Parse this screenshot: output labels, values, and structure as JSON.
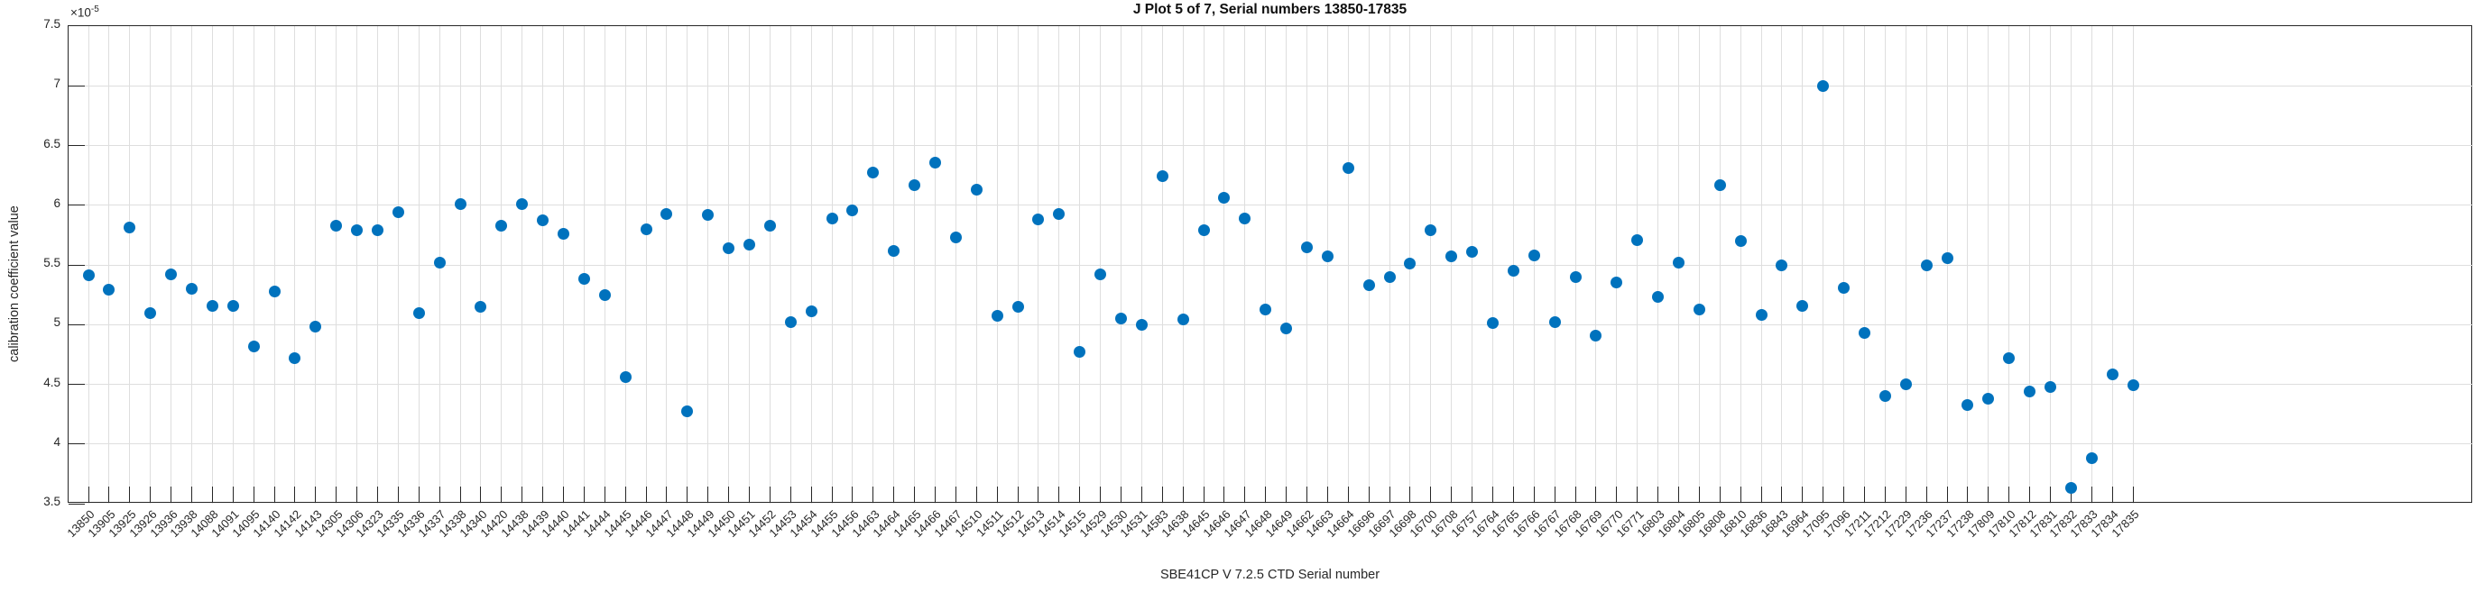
{
  "window": {
    "background": "#ffffff"
  },
  "chart_data": {
    "type": "scatter",
    "title": "J Plot 5 of 7, Serial numbers 13850-17835",
    "xlabel": "SBE41CP V 7.2.5 CTD Serial number",
    "ylabel": "calibration coefficient value",
    "y_offset_base": "×10",
    "y_offset_exponent": "-5",
    "ylim": [
      3.5,
      7.5
    ],
    "ytick_values": [
      3.5,
      4,
      4.5,
      5,
      5.5,
      6,
      6.5,
      7,
      7.5
    ],
    "ytick_labels": [
      "3.5",
      "4",
      "4.5",
      "5",
      "5.5",
      "6",
      "6.5",
      "7",
      "7.5"
    ],
    "grid": true,
    "legend": null,
    "marker_color": "#0072BD",
    "axis_color": "#262626",
    "grid_color": "#dedede",
    "categories": [
      "13850",
      "13905",
      "13925",
      "13926",
      "13936",
      "13938",
      "14088",
      "14091",
      "14095",
      "14140",
      "14142",
      "14143",
      "14305",
      "14306",
      "14323",
      "14335",
      "14336",
      "14337",
      "14338",
      "14340",
      "14420",
      "14438",
      "14439",
      "14440",
      "14441",
      "14444",
      "14445",
      "14446",
      "14447",
      "14448",
      "14449",
      "14450",
      "14451",
      "14452",
      "14453",
      "14454",
      "14455",
      "14456",
      "14463",
      "14464",
      "14465",
      "14466",
      "14467",
      "14510",
      "14511",
      "14512",
      "14513",
      "14514",
      "14515",
      "14529",
      "14530",
      "14531",
      "14583",
      "14638",
      "14645",
      "14646",
      "14647",
      "14648",
      "14649",
      "14662",
      "14663",
      "14664",
      "16696",
      "16697",
      "16698",
      "16700",
      "16708",
      "16757",
      "16764",
      "16765",
      "16766",
      "16767",
      "16768",
      "16769",
      "16770",
      "16771",
      "16803",
      "16804",
      "16805",
      "16808",
      "16810",
      "16836",
      "16843",
      "16964",
      "17095",
      "17096",
      "17211",
      "17212",
      "17229",
      "17236",
      "17237",
      "17238",
      "17809",
      "17810",
      "17812",
      "17831",
      "17832",
      "17833",
      "17834",
      "17835"
    ],
    "values": [
      5.41,
      5.29,
      5.81,
      5.1,
      5.42,
      5.3,
      5.16,
      5.16,
      4.82,
      5.28,
      4.72,
      4.98,
      5.83,
      5.79,
      5.79,
      5.94,
      5.1,
      5.52,
      6.01,
      5.15,
      5.83,
      6.01,
      5.87,
      5.76,
      5.38,
      5.25,
      4.56,
      5.8,
      5.93,
      4.27,
      5.92,
      5.64,
      5.67,
      5.83,
      5.02,
      5.11,
      5.89,
      5.96,
      6.27,
      5.62,
      6.17,
      6.36,
      5.73,
      6.13,
      5.07,
      5.15,
      5.88,
      5.93,
      4.77,
      5.42,
      5.05,
      5.0,
      6.24,
      5.04,
      5.79,
      6.06,
      5.89,
      5.13,
      4.97,
      5.65,
      5.57,
      6.31,
      5.33,
      5.4,
      5.51,
      5.79,
      5.57,
      5.61,
      5.01,
      5.45,
      5.58,
      5.02,
      5.4,
      4.91,
      5.35,
      5.71,
      5.23,
      5.52,
      5.13,
      6.17,
      5.7,
      5.08,
      5.5,
      5.16,
      7.0,
      5.31,
      4.93,
      4.4,
      4.5,
      5.5,
      5.56,
      4.33,
      4.38,
      4.72,
      4.44,
      4.48,
      3.63,
      3.88,
      4.58,
      4.49
    ],
    "value_scale": "1e-5"
  }
}
